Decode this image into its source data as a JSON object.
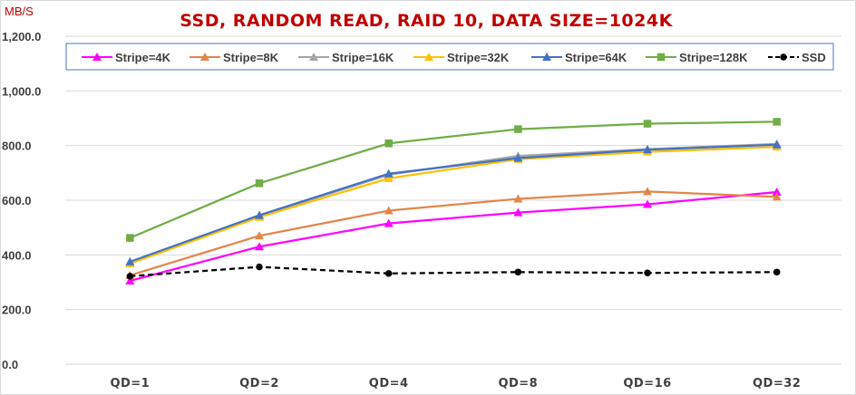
{
  "chart_data": {
    "type": "line",
    "title": "SSD, RANDOM READ, RAID 10, DATA SIZE=1024K",
    "ylabel": "MB/S",
    "xlabel": "",
    "ylim": [
      0,
      1200
    ],
    "ytick_step": 200,
    "ytick_labels": [
      "0.0",
      "200.0",
      "400.0",
      "600.0",
      "800.0",
      "1,000.0",
      "1,200.0"
    ],
    "grid": true,
    "legend_position": "top",
    "categories": [
      "QD=1",
      "QD=2",
      "QD=4",
      "QD=8",
      "QD=16",
      "QD=32"
    ],
    "series": [
      {
        "name": "Stripe=4K",
        "color": "#ff00ff",
        "marker": "triangle",
        "dashed": false,
        "values": [
          305,
          430,
          515,
          555,
          585,
          630
        ]
      },
      {
        "name": "Stripe=8K",
        "color": "#e2864a",
        "marker": "triangle",
        "dashed": false,
        "values": [
          325,
          470,
          562,
          605,
          632,
          612
        ]
      },
      {
        "name": "Stripe=16K",
        "color": "#a5a5a5",
        "marker": "triangle",
        "dashed": false,
        "values": [
          372,
          542,
          693,
          762,
          787,
          806
        ]
      },
      {
        "name": "Stripe=32K",
        "color": "#ffc000",
        "marker": "triangle",
        "dashed": false,
        "values": [
          368,
          538,
          680,
          750,
          777,
          795
        ]
      },
      {
        "name": "Stripe=64K",
        "color": "#4472c4",
        "marker": "triangle",
        "dashed": false,
        "values": [
          375,
          545,
          697,
          754,
          785,
          803
        ]
      },
      {
        "name": "Stripe=128K",
        "color": "#70ad47",
        "marker": "square",
        "dashed": false,
        "values": [
          462,
          662,
          808,
          860,
          880,
          887
        ]
      },
      {
        "name": "SSD",
        "color": "#000000",
        "marker": "circle",
        "dashed": true,
        "values": [
          322,
          356,
          332,
          337,
          334,
          337
        ]
      }
    ]
  },
  "colors": {
    "title": "#c00000",
    "axis_label": "#c00000",
    "grid": "#d9d9d9",
    "text": "#404040"
  }
}
